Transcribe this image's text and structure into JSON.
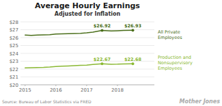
{
  "chart_data": {
    "type": "line",
    "title": "Average Hourly Earnings",
    "subtitle": "Adjusted for Inflation",
    "source": "Source: Bureau of Labor Statistics via FRED",
    "watermark": "Mother Jones",
    "x": [
      2015.0,
      2015.2,
      2015.4,
      2015.6,
      2015.8,
      2016.0,
      2016.2,
      2016.4,
      2016.6,
      2016.8,
      2017.0,
      2017.2,
      2017.5,
      2017.8,
      2018.0,
      2018.2,
      2018.5
    ],
    "series": [
      {
        "name": "All Private\nEmployees",
        "color": "#4a6e1a",
        "values": [
          26.33,
          26.28,
          26.32,
          26.35,
          26.38,
          26.45,
          26.48,
          26.5,
          26.52,
          26.55,
          26.6,
          26.7,
          26.92,
          26.85,
          26.88,
          26.91,
          26.93
        ]
      },
      {
        "name": "Production and\nNonsupervisory\nEmployees",
        "color": "#8ab832",
        "values": [
          22.15,
          22.18,
          22.2,
          22.22,
          22.26,
          22.32,
          22.36,
          22.4,
          22.44,
          22.47,
          22.5,
          22.58,
          22.67,
          22.61,
          22.62,
          22.65,
          22.68
        ]
      }
    ],
    "annotations": [
      {
        "x": 2017.5,
        "y": 26.92,
        "label": "$26.92",
        "color": "#4a6e1a"
      },
      {
        "x": 2018.5,
        "y": 26.93,
        "label": "$26.93",
        "color": "#4a6e1a"
      },
      {
        "x": 2017.5,
        "y": 22.67,
        "label": "$22.67",
        "color": "#8ab832"
      },
      {
        "x": 2018.5,
        "y": 22.68,
        "label": "$22.68",
        "color": "#8ab832"
      }
    ],
    "xlim": [
      2014.85,
      2019.2
    ],
    "xticks": [
      2015,
      2016,
      2017,
      2018
    ],
    "ylim": [
      20,
      28
    ],
    "yticks": [
      {
        "value": 20,
        "label": "$20"
      },
      {
        "value": 21,
        "label": "$21"
      },
      {
        "value": 22,
        "label": "$22"
      },
      {
        "value": 23,
        "label": "$23"
      },
      {
        "value": 24,
        "label": "$24"
      },
      {
        "value": 25,
        "label": "$25"
      },
      {
        "value": 26,
        "label": "$26"
      },
      {
        "value": 27,
        "label": "$27"
      },
      {
        "value": 28,
        "label": "$28"
      }
    ],
    "grid": true,
    "legend": "right"
  }
}
